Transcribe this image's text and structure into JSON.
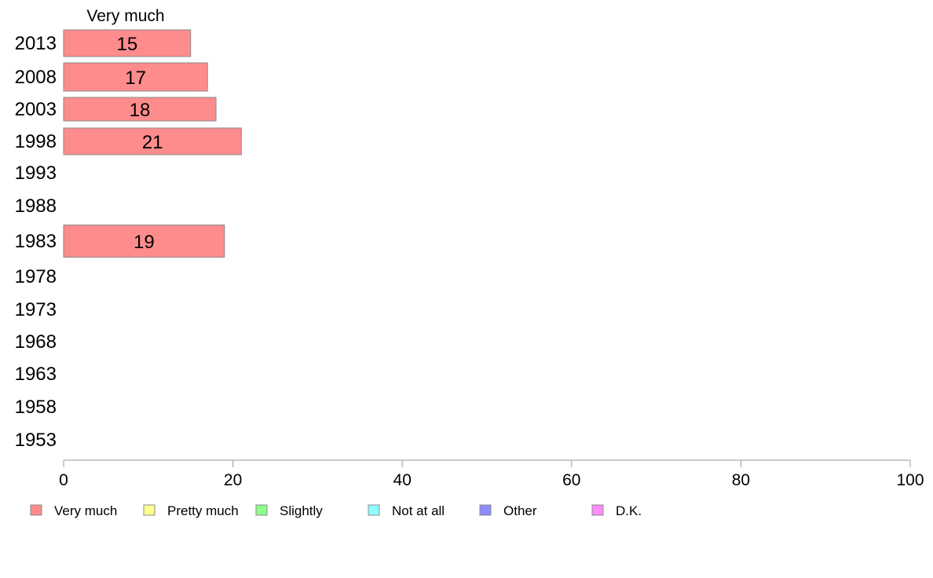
{
  "chart_data": {
    "type": "bar",
    "orientation": "horizontal",
    "stacked": true,
    "categories": [
      "2013",
      "2008",
      "2003",
      "1998",
      "1993",
      "1988",
      "1983",
      "1978",
      "1973",
      "1968",
      "1963",
      "1958",
      "1953"
    ],
    "series": [
      {
        "name": "Very much",
        "values": [
          15,
          17,
          18,
          21,
          null,
          null,
          19,
          null,
          null,
          null,
          null,
          null,
          null
        ],
        "color": "#ff8c8c"
      },
      {
        "name": "Pretty much",
        "values": [
          null,
          null,
          null,
          null,
          null,
          null,
          null,
          null,
          null,
          null,
          null,
          null,
          null
        ],
        "color": "#ffff8c"
      },
      {
        "name": "Slightly",
        "values": [
          null,
          null,
          null,
          null,
          null,
          null,
          null,
          null,
          null,
          null,
          null,
          null,
          null
        ],
        "color": "#8cff8c"
      },
      {
        "name": "Not at all",
        "values": [
          null,
          null,
          null,
          null,
          null,
          null,
          null,
          null,
          null,
          null,
          null,
          null,
          null
        ],
        "color": "#8cffff"
      },
      {
        "name": "Other",
        "values": [
          null,
          null,
          null,
          null,
          null,
          null,
          null,
          null,
          null,
          null,
          null,
          null,
          null
        ],
        "color": "#8c8cff"
      },
      {
        "name": "D.K.",
        "values": [
          null,
          null,
          null,
          null,
          null,
          null,
          null,
          null,
          null,
          null,
          null,
          null,
          null
        ],
        "color": "#ff8cff"
      }
    ],
    "series_header": "Very much",
    "xlim": [
      0,
      100
    ],
    "xticks": [
      0,
      20,
      40,
      60,
      80,
      100
    ],
    "grid": false,
    "legend_position": "bottom",
    "title": "",
    "xlabel": "",
    "ylabel": ""
  }
}
